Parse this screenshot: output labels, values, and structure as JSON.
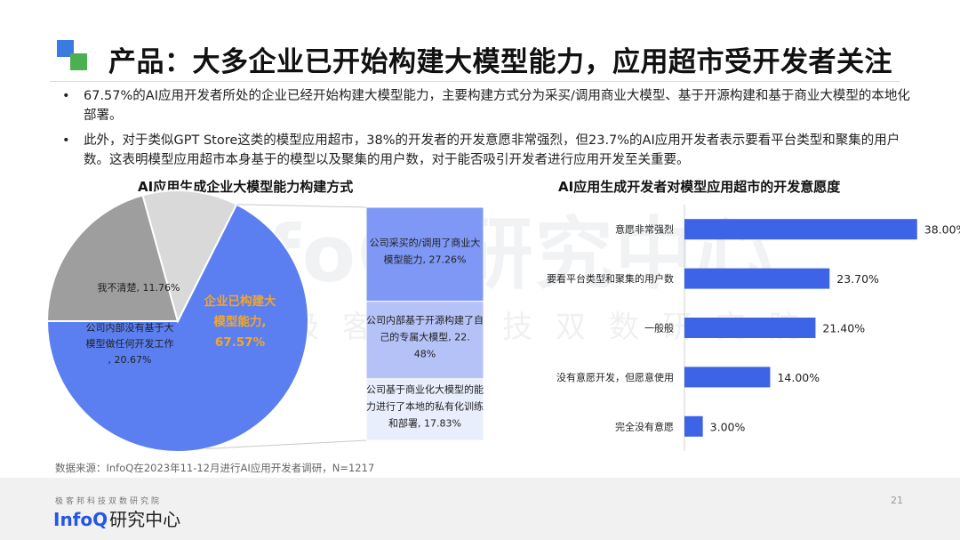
{
  "slide": {
    "title": "产品：大多企业已开始构建大模型能力，应用超市受开发者关注",
    "bullets": [
      "67.57%的AI应用开发者所处的企业已经开始构建大模型能力，主要构建方式分为采买/调用商业大模型、基于开源构建和基于商业大模型的本地化部署。",
      "此外，对于类似GPT Store这类的模型应用超市，38%的开发者的开发意愿非常强烈，但23.7%的AI应用开发者表示要看平台类型和聚集的用户数。这表明模型应用超市本身基于的模型以及聚集的用户数，对于能否吸引开发者进行应用开发至关重要。"
    ],
    "source": "数据来源：InfoQ在2023年11-12月进行AI应用开发者调研，N=1217",
    "watermark": "InfoQ 研究中心",
    "watermark2": "极客邦科技双数研究院",
    "page_number": "21",
    "colors": {
      "logo_blue": "#3b7ae0",
      "logo_green": "#4caf50",
      "brand_blue": "#2456e8"
    }
  },
  "footer": {
    "org": "极客邦科技双数研究院",
    "brand_en": "InfoQ",
    "brand_cn": "研究中心"
  },
  "chart_data": [
    {
      "type": "pie",
      "title": "AI应用生成企业大模型能力构建方式",
      "slices": [
        {
          "label": "企业已构建大模型能力，67.57%",
          "value": 67.57,
          "color": "#5b7ff0",
          "label_color": "#f5a623"
        },
        {
          "label": "公司内部没有基于大模型做任何开发工作, 20.67%",
          "value": 20.67,
          "color": "#9e9e9e",
          "label_color": "#222222"
        },
        {
          "label": "我不清楚, 11.76%",
          "value": 11.76,
          "color": "#d9d9d9",
          "label_color": "#222222"
        }
      ],
      "breakdown": [
        {
          "label": "公司采买的/调用了商业大模型能力, 27.26%",
          "value": 27.26,
          "color": "#7f98f5"
        },
        {
          "label": "公司内部基于开源构建了自己的专属大模型, 22.48%",
          "value": 22.48,
          "color": "#b4c2f8"
        },
        {
          "label": "公司基于商业化大模型的能力进行了本地的私有化训练和部署, 17.83%",
          "value": 17.83,
          "color": "#e9eefd"
        }
      ]
    },
    {
      "type": "bar",
      "orientation": "horizontal",
      "title": "AI应用生成开发者对模型应用超市的开发意愿度",
      "categories": [
        "意愿非常强烈",
        "要看平台类型和聚集的用户数",
        "一般般",
        "没有意愿开发，但愿意使用",
        "完全没有意愿"
      ],
      "values": [
        38.0,
        23.7,
        21.4,
        14.0,
        3.0
      ],
      "value_labels": [
        "38.00%",
        "23.70%",
        "21.40%",
        "14.00%",
        "3.00%"
      ],
      "color": "#3d63e6",
      "xlim": [
        0,
        45
      ]
    }
  ]
}
